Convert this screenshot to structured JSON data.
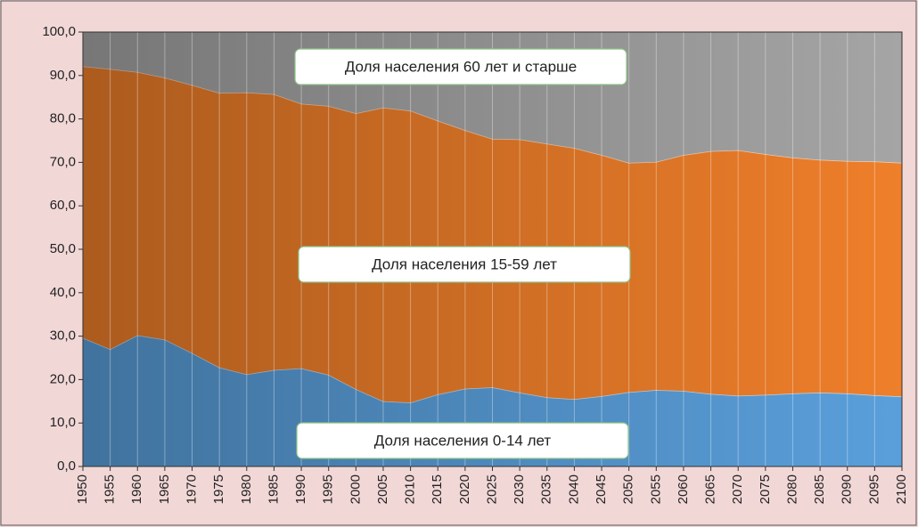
{
  "chart_data": {
    "type": "stacked_area",
    "categories": [
      "1950",
      "1955",
      "1960",
      "1965",
      "1970",
      "1975",
      "1980",
      "1985",
      "1990",
      "1995",
      "2000",
      "2005",
      "2010",
      "2015",
      "2020",
      "2025",
      "2030",
      "2035",
      "2040",
      "2045",
      "2050",
      "2055",
      "2060",
      "2065",
      "2070",
      "2075",
      "2080",
      "2085",
      "2090",
      "2095",
      "2100"
    ],
    "series": [
      {
        "name": "Доля населения 0-14 лет",
        "color": "#5a9fdb",
        "values": [
          29.6,
          27.0,
          30.2,
          29.2,
          26.1,
          22.8,
          21.2,
          22.2,
          22.6,
          21.1,
          17.8,
          15.0,
          14.7,
          16.6,
          17.9,
          18.2,
          17.0,
          15.9,
          15.5,
          16.2,
          17.1,
          17.6,
          17.4,
          16.7,
          16.3,
          16.5,
          16.8,
          17.0,
          16.8,
          16.4,
          16.1
        ]
      },
      {
        "name": "Доля населения 15-59 лет",
        "color": "#ef7f2a",
        "values": [
          62.5,
          64.5,
          60.6,
          60.3,
          61.7,
          63.2,
          64.9,
          63.5,
          60.9,
          61.9,
          63.5,
          67.6,
          67.2,
          63.0,
          59.5,
          57.2,
          58.3,
          58.4,
          57.8,
          55.5,
          52.8,
          52.5,
          54.3,
          55.9,
          56.5,
          55.4,
          54.3,
          53.6,
          53.5,
          53.8,
          53.8
        ]
      },
      {
        "name": "Доля населения 60 лет и старше",
        "color": "#a5a5a5",
        "values": [
          7.9,
          8.5,
          9.2,
          10.5,
          12.2,
          14.0,
          13.9,
          14.3,
          16.5,
          17.0,
          18.7,
          17.4,
          18.1,
          20.4,
          22.6,
          24.6,
          24.7,
          25.7,
          26.7,
          28.3,
          30.1,
          29.9,
          28.3,
          27.4,
          27.2,
          28.1,
          28.9,
          29.4,
          29.7,
          29.8,
          30.1
        ]
      }
    ],
    "ylim": [
      0,
      100
    ],
    "yticks": [
      {
        "value": 0,
        "label": "0,0"
      },
      {
        "value": 10,
        "label": "10,0"
      },
      {
        "value": 20,
        "label": "20,0"
      },
      {
        "value": 30,
        "label": "30,0"
      },
      {
        "value": 40,
        "label": "40,0"
      },
      {
        "value": 50,
        "label": "50,0"
      },
      {
        "value": 60,
        "label": "60,0"
      },
      {
        "value": 70,
        "label": "70,0"
      },
      {
        "value": 80,
        "label": "80,0"
      },
      {
        "value": 90,
        "label": "90,0"
      },
      {
        "value": 100,
        "label": "100,0"
      }
    ]
  }
}
